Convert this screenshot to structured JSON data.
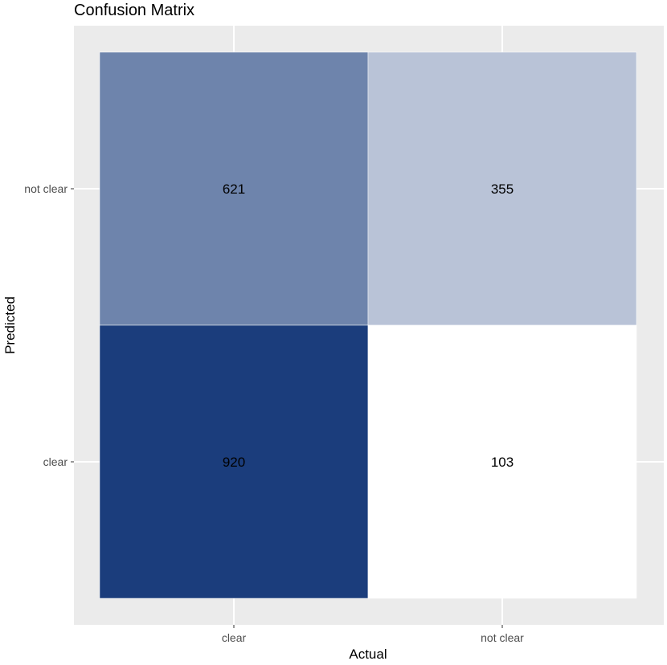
{
  "chart_data": {
    "type": "heatmap",
    "title": "Confusion Matrix",
    "xlabel": "Actual",
    "ylabel": "Predicted",
    "x_categories": [
      "clear",
      "not clear"
    ],
    "y_categories": [
      "clear",
      "not clear"
    ],
    "cells": [
      {
        "actual": "clear",
        "predicted": "not clear",
        "value": 621,
        "label": "621"
      },
      {
        "actual": "not clear",
        "predicted": "not clear",
        "value": 355,
        "label": "355"
      },
      {
        "actual": "clear",
        "predicted": "clear",
        "value": 920,
        "label": "920"
      },
      {
        "actual": "not clear",
        "predicted": "clear",
        "value": 103,
        "label": "103"
      }
    ],
    "value_range": [
      103,
      920
    ],
    "color_low": "#ffffff",
    "color_high": "#1b3d7c",
    "panel_background": "#ebebeb",
    "grid_color": "#ffffff",
    "grid": true,
    "legend": "none"
  }
}
